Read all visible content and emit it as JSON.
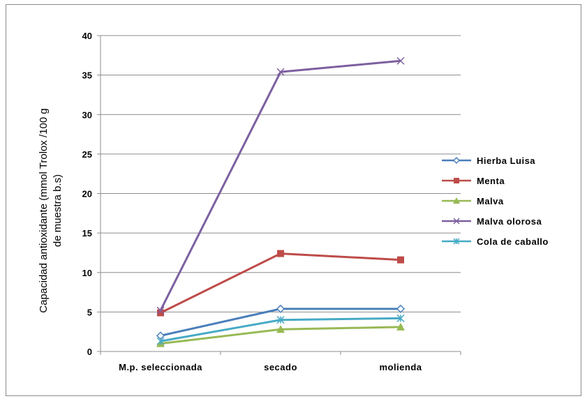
{
  "chart_data": {
    "type": "line",
    "title": "",
    "xlabel": "",
    "ylabel_line1": "Capacidad antioxidante  (mmol Trolox /100 g",
    "ylabel_line2": "de muestra b.s)",
    "categories": [
      "M.p. seleccionada",
      "secado",
      "molienda"
    ],
    "ylim": [
      0,
      40
    ],
    "yticks": [
      0,
      5,
      10,
      15,
      20,
      25,
      30,
      35,
      40
    ],
    "grid": true,
    "legend_position": "right",
    "series": [
      {
        "name": "Hierba Luisa",
        "values": [
          2.0,
          5.4,
          5.4
        ],
        "color": "#4a7ebb",
        "marker": "diamond-open"
      },
      {
        "name": "Menta",
        "values": [
          4.9,
          12.4,
          11.6
        ],
        "color": "#be4b48",
        "marker": "square"
      },
      {
        "name": "Malva",
        "values": [
          1.0,
          2.8,
          3.1
        ],
        "color": "#98b954",
        "marker": "triangle"
      },
      {
        "name": "Malva olorosa",
        "values": [
          5.2,
          35.4,
          36.8
        ],
        "color": "#7d60a0",
        "marker": "x"
      },
      {
        "name": "Cola de caballo",
        "values": [
          1.3,
          4.0,
          4.2
        ],
        "color": "#46aac5",
        "marker": "star"
      }
    ]
  }
}
